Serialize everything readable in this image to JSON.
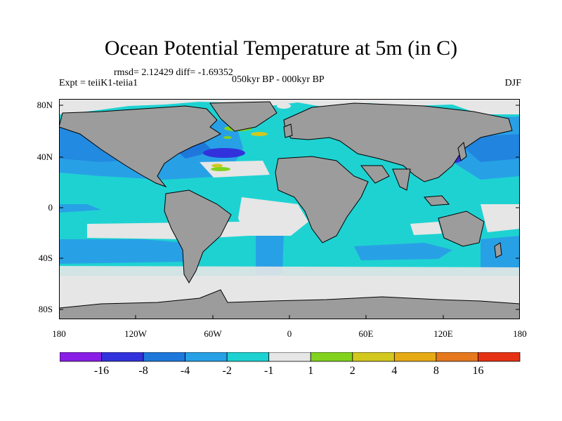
{
  "title": "Ocean Potential Temperature at 5m (in C)",
  "stats_text": "rmsd= 2.12429 diff= -1.69352",
  "experiment_text": "Expt = teiiK1-teiia1",
  "period_text": "050kyr BP - 000kyr BP",
  "season": "DJF",
  "lat_labels": [
    "80N",
    "40N",
    "0",
    "40S",
    "80S"
  ],
  "lon_labels": [
    "180",
    "120W",
    "60W",
    "0",
    "60E",
    "120E",
    "180"
  ],
  "colorbar": {
    "labels": [
      "-16",
      "-8",
      "-4",
      "-2",
      "-1",
      "1",
      "2",
      "4",
      "8",
      "16"
    ],
    "colors": [
      "#8a1ee6",
      "#3232dc",
      "#1e78dc",
      "#28a0e6",
      "#1ed2d2",
      "#e6e6e6",
      "#82d21e",
      "#d2c81e",
      "#e6aa14",
      "#e6781e",
      "#e63214"
    ]
  },
  "map_colors": {
    "land": "#9c9c9c",
    "near_zero": "#e6e6e6",
    "cyan": "#1ed2d2",
    "light_blue": "#28a0e6",
    "blue": "#1e78dc",
    "dark_blue": "#3232dc",
    "green": "#82d21e",
    "yellow": "#d2c81e"
  }
}
